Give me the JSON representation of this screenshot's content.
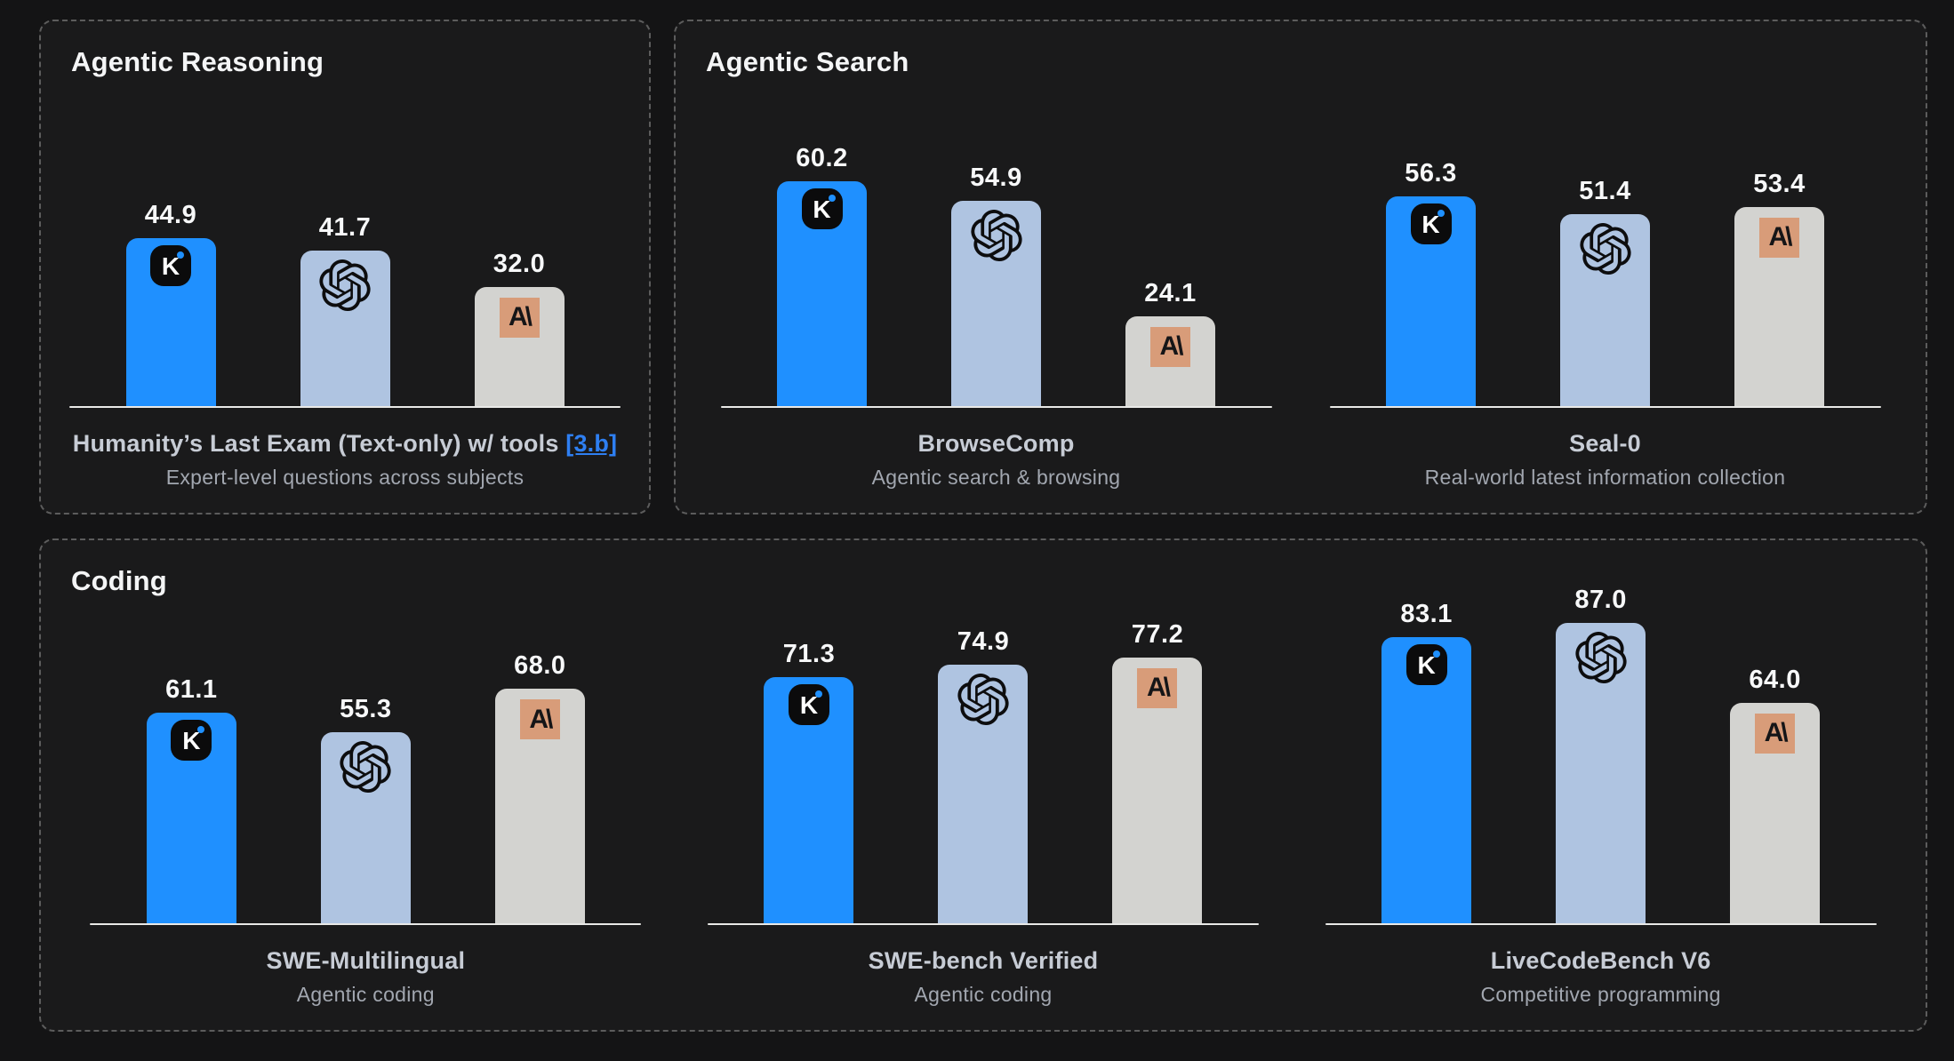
{
  "colors": {
    "panel_bg": "#1a1a1b",
    "panel_border": "#5c5c5c",
    "kimi_blue": "#1f90ff",
    "openai_periwinkle": "#afc4e1",
    "anthropic_gray": "#d3d3d0",
    "anthropic_logo_bg": "#d89c79",
    "axis": "#e9e9e7",
    "name_text": "#c7ccd5",
    "subtitle_text": "#a2a7b0",
    "link_blue": "#2e7ff2"
  },
  "logos": {
    "kimi_letter": "K",
    "anthropic_mark": "A\\"
  },
  "panels": [
    {
      "title": "Agentic Reasoning",
      "charts": [
        {
          "name": "Humanity’s Last Exam (Text-only) w/ tools",
          "link_label": "[3.b]",
          "subtitle": "Expert-level questions across subjects",
          "bars": [
            {
              "model": "kimi-k2",
              "value": "44.9"
            },
            {
              "model": "openai",
              "value": "41.7"
            },
            {
              "model": "anthropic",
              "value": "32.0"
            }
          ]
        }
      ]
    },
    {
      "title": "Agentic Search",
      "charts": [
        {
          "name": "BrowseComp",
          "subtitle": "Agentic search & browsing",
          "bars": [
            {
              "model": "kimi-k2",
              "value": "60.2"
            },
            {
              "model": "openai",
              "value": "54.9"
            },
            {
              "model": "anthropic",
              "value": "24.1"
            }
          ]
        },
        {
          "name": "Seal-0",
          "subtitle": "Real-world latest information collection",
          "bars": [
            {
              "model": "kimi-k2",
              "value": "56.3"
            },
            {
              "model": "openai",
              "value": "51.4"
            },
            {
              "model": "anthropic",
              "value": "53.4"
            }
          ]
        }
      ]
    },
    {
      "title": "Coding",
      "charts": [
        {
          "name": "SWE-Multilingual",
          "subtitle": "Agentic coding",
          "bars": [
            {
              "model": "kimi-k2",
              "value": "61.1"
            },
            {
              "model": "openai",
              "value": "55.3"
            },
            {
              "model": "anthropic",
              "value": "68.0"
            }
          ]
        },
        {
          "name": "SWE-bench Verified",
          "subtitle": "Agentic coding",
          "bars": [
            {
              "model": "kimi-k2",
              "value": "71.3"
            },
            {
              "model": "openai",
              "value": "74.9"
            },
            {
              "model": "anthropic",
              "value": "77.2"
            }
          ]
        },
        {
          "name": "LiveCodeBench V6",
          "subtitle": "Competitive programming",
          "bars": [
            {
              "model": "kimi-k2",
              "value": "83.1"
            },
            {
              "model": "openai",
              "value": "87.0"
            },
            {
              "model": "anthropic",
              "value": "64.0"
            }
          ]
        }
      ]
    }
  ],
  "chart_data": [
    {
      "type": "bar",
      "panel": "Agentic Reasoning",
      "title": "Humanity’s Last Exam (Text-only) w/ tools [3.b]",
      "subtitle": "Expert-level questions across subjects",
      "categories": [
        "Kimi K2",
        "OpenAI",
        "Anthropic"
      ],
      "values": [
        44.9,
        41.7,
        32.0
      ],
      "ylim": [
        0,
        100
      ],
      "grid": false,
      "legend": "none (bars identified by model logos)"
    },
    {
      "type": "bar",
      "panel": "Agentic Search",
      "title": "BrowseComp",
      "subtitle": "Agentic search & browsing",
      "categories": [
        "Kimi K2",
        "OpenAI",
        "Anthropic"
      ],
      "values": [
        60.2,
        54.9,
        24.1
      ],
      "ylim": [
        0,
        100
      ],
      "grid": false,
      "legend": "none (bars identified by model logos)"
    },
    {
      "type": "bar",
      "panel": "Agentic Search",
      "title": "Seal-0",
      "subtitle": "Real-world latest information collection",
      "categories": [
        "Kimi K2",
        "OpenAI",
        "Anthropic"
      ],
      "values": [
        56.3,
        51.4,
        53.4
      ],
      "ylim": [
        0,
        100
      ],
      "grid": false,
      "legend": "none (bars identified by model logos)"
    },
    {
      "type": "bar",
      "panel": "Coding",
      "title": "SWE-Multilingual",
      "subtitle": "Agentic coding",
      "categories": [
        "Kimi K2",
        "OpenAI",
        "Anthropic"
      ],
      "values": [
        61.1,
        55.3,
        68.0
      ],
      "ylim": [
        0,
        100
      ],
      "grid": false,
      "legend": "none (bars identified by model logos)"
    },
    {
      "type": "bar",
      "panel": "Coding",
      "title": "SWE-bench Verified",
      "subtitle": "Agentic coding",
      "categories": [
        "Kimi K2",
        "OpenAI",
        "Anthropic"
      ],
      "values": [
        71.3,
        74.9,
        77.2
      ],
      "ylim": [
        0,
        100
      ],
      "grid": false,
      "legend": "none (bars identified by model logos)"
    },
    {
      "type": "bar",
      "panel": "Coding",
      "title": "LiveCodeBench V6",
      "subtitle": "Competitive programming",
      "categories": [
        "Kimi K2",
        "OpenAI",
        "Anthropic"
      ],
      "values": [
        83.1,
        87.0,
        64.0
      ],
      "ylim": [
        0,
        100
      ],
      "grid": false,
      "legend": "none (bars identified by model logos)"
    }
  ]
}
